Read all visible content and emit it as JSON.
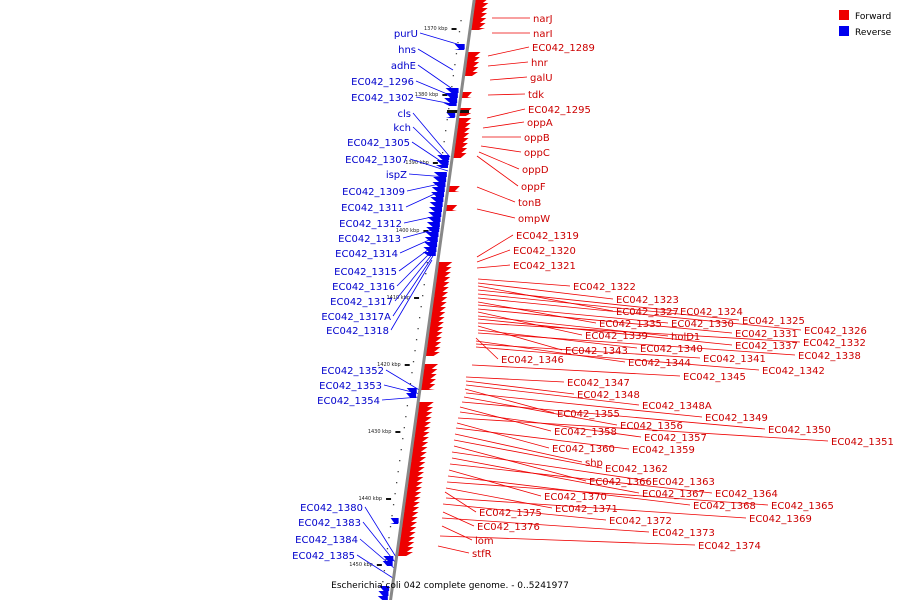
{
  "caption": "Escherichia coli 042 complete genome. - 0..5241977",
  "legend": [
    {
      "label": "Forward",
      "color": "#ee0000"
    },
    {
      "label": "Reverse",
      "color": "#0000ee"
    }
  ],
  "axis_color": "#888888",
  "ticks": [
    {
      "kbp": 1370,
      "label": "1370 kbp"
    },
    {
      "kbp": 1380,
      "label": "1380 kbp"
    },
    {
      "kbp": 1390,
      "label": "1390 kbp"
    },
    {
      "kbp": 1400,
      "label": "1400 kbp"
    },
    {
      "kbp": 1410,
      "label": "1410 kbp"
    },
    {
      "kbp": 1420,
      "label": "1420 kbp"
    },
    {
      "kbp": 1430,
      "label": "1430 kbp"
    },
    {
      "kbp": 1440,
      "label": "1440 kbp"
    },
    {
      "kbp": 1450,
      "label": "1450 kbp"
    }
  ],
  "forward_genes": [
    "narJ",
    "narI",
    "EC042_1289",
    "hnr",
    "galU",
    "tdk",
    "EC042_1295",
    "oppA",
    "oppB",
    "oppC",
    "oppD",
    "oppF",
    "tonB",
    "ompW",
    "EC042_1319",
    "EC042_1320",
    "EC042_1321",
    "EC042_1322",
    "EC042_1323",
    "EC042_1327",
    "EC042_1324",
    "EC042_1325",
    "EC042_1326",
    "EC042_1335",
    "EC042_1330",
    "EC042_1331",
    "EC042_1339",
    "holD1",
    "EC042_1337",
    "EC042_1332",
    "EC042_1343",
    "EC042_1340",
    "EC042_1338",
    "EC042_1346",
    "EC042_1344",
    "EC042_1341",
    "EC042_1342",
    "EC042_1345",
    "EC042_1347",
    "EC042_1348",
    "EC042_1348A",
    "EC042_1355",
    "EC042_1349",
    "EC042_1356",
    "EC042_1350",
    "EC042_1358",
    "EC042_1357",
    "EC042_1351",
    "EC042_1360",
    "EC042_1359",
    "shp",
    "EC042_1362",
    "EC042_1366",
    "EC042_1363",
    "EC042_1367",
    "EC042_1364",
    "EC042_1370",
    "EC042_1368",
    "EC042_1365",
    "EC042_1371",
    "EC042_1375",
    "EC042_1369",
    "EC042_1372",
    "EC042_1376",
    "EC042_1373",
    "lom",
    "EC042_1374",
    "stfR"
  ],
  "reverse_genes": [
    "purU",
    "hns",
    "adhE",
    "EC042_1296",
    "EC042_1302",
    "cls",
    "kch",
    "EC042_1305",
    "EC042_1307",
    "ispZ",
    "EC042_1309",
    "EC042_1311",
    "EC042_1312",
    "EC042_1313",
    "EC042_1314",
    "EC042_1315",
    "EC042_1316",
    "EC042_1317",
    "EC042_1317A",
    "EC042_1318",
    "EC042_1352",
    "EC042_1353",
    "EC042_1354",
    "EC042_1380",
    "EC042_1383",
    "EC042_1384",
    "EC042_1385"
  ]
}
